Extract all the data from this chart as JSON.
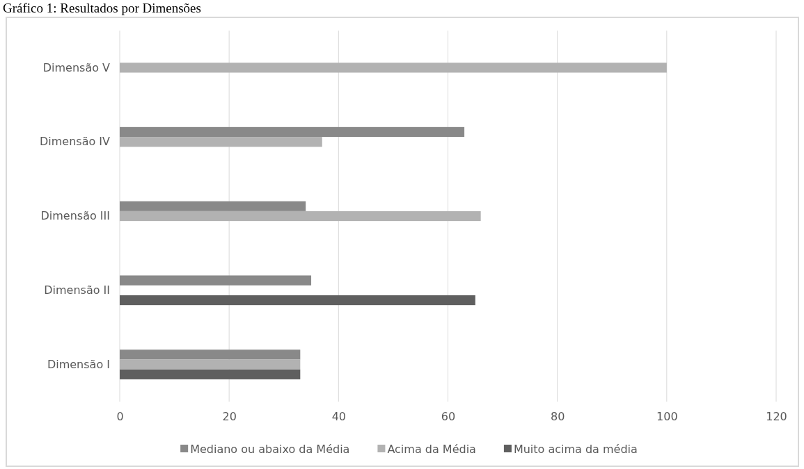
{
  "chart_data": {
    "type": "bar",
    "orientation": "horizontal",
    "title": "Gráfico 1: Resultados por Dimensões",
    "categories": [
      "Dimensão V",
      "Dimensão IV",
      "Dimensão III",
      "Dimensão II",
      "Dimensão I"
    ],
    "series": [
      {
        "name": "Mediano ou abaixo da Média",
        "color": "#898989",
        "values": [
          null,
          63,
          34,
          35,
          33
        ]
      },
      {
        "name": "Acima da Média",
        "color": "#b2b2b2",
        "values": [
          100,
          37,
          66,
          null,
          33
        ]
      },
      {
        "name": "Muito acima da média",
        "color": "#5f5f5f",
        "values": [
          null,
          null,
          null,
          65,
          33
        ]
      }
    ],
    "xlim": [
      0,
      120
    ],
    "xticks": [
      0,
      20,
      40,
      60,
      80,
      100,
      120
    ],
    "grid": "x",
    "legend": "bottom"
  }
}
